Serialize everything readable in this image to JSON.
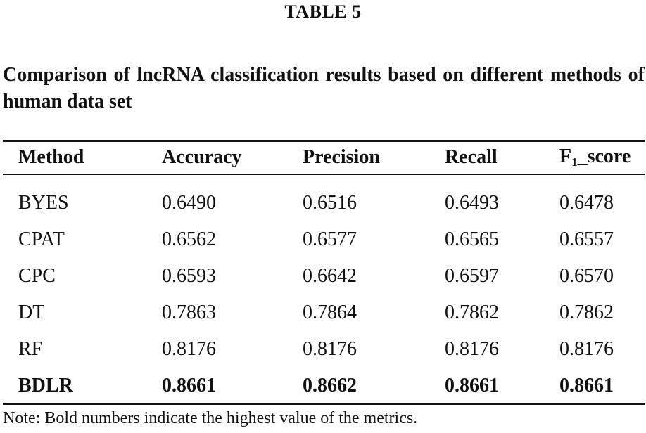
{
  "table_label": "TABLE 5",
  "caption": "Comparison of lncRNA classification results based on different methods of human data set",
  "table": {
    "columns": [
      "Method",
      "Accuracy",
      "Precision",
      "Recall",
      "F",
      "_score"
    ],
    "f1_subscript": "1",
    "rows": [
      {
        "method": "BYES",
        "accuracy": "0.6490",
        "precision": "0.6516",
        "recall": "0.6493",
        "f1_score": "0.6478"
      },
      {
        "method": "CPAT",
        "accuracy": "0.6562",
        "precision": "0.6577",
        "recall": "0.6565",
        "f1_score": "0.6557"
      },
      {
        "method": "CPC",
        "accuracy": "0.6593",
        "precision": "0.6642",
        "recall": "0.6597",
        "f1_score": "0.6570"
      },
      {
        "method": "DT",
        "accuracy": "0.7863",
        "precision": "0.7864",
        "recall": "0.7862",
        "f1_score": "0.7862"
      },
      {
        "method": "RF",
        "accuracy": "0.8176",
        "precision": "0.8176",
        "recall": "0.8176",
        "f1_score": "0.8176"
      },
      {
        "method": "BDLR",
        "accuracy": "0.8661",
        "precision": "0.8662",
        "recall": "0.8661",
        "f1_score": "0.8661",
        "bold": true
      }
    ]
  },
  "note": "Note: Bold numbers indicate the highest value of the metrics."
}
